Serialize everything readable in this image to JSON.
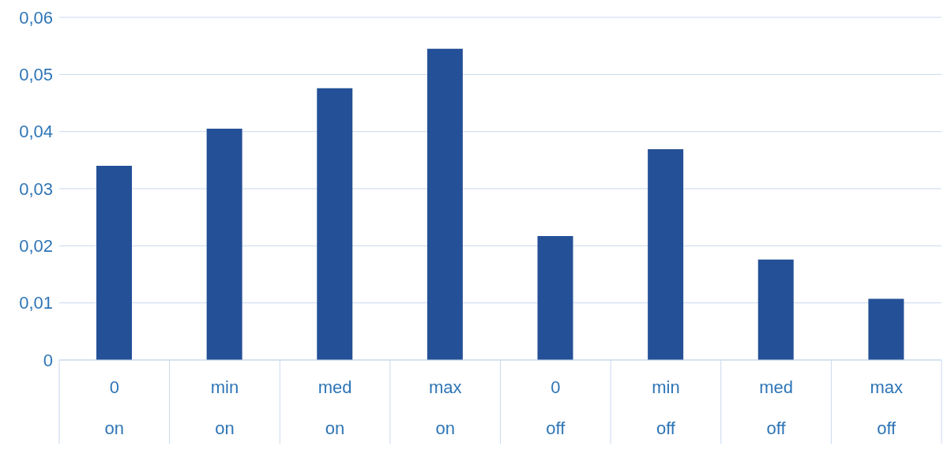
{
  "chart_data": {
    "type": "bar",
    "categories": [
      "0\non",
      "min\non",
      "med\non",
      "max\non",
      "0\noff",
      "min\noff",
      "med\noff",
      "max\noff"
    ],
    "values": [
      0.034,
      0.0405,
      0.0476,
      0.0545,
      0.0217,
      0.0369,
      0.0176,
      0.0107
    ],
    "color": "#245097",
    "ylim": [
      0,
      0.06
    ],
    "yticks": [
      {
        "value": 0,
        "label": "0"
      },
      {
        "value": 0.01,
        "label": "0,01"
      },
      {
        "value": 0.02,
        "label": "0,02"
      },
      {
        "value": 0.03,
        "label": "0,03"
      },
      {
        "value": 0.04,
        "label": "0,04"
      },
      {
        "value": 0.05,
        "label": "0,05"
      },
      {
        "value": 0.06,
        "label": "0,06"
      }
    ],
    "grid": "y",
    "legend": false
  }
}
